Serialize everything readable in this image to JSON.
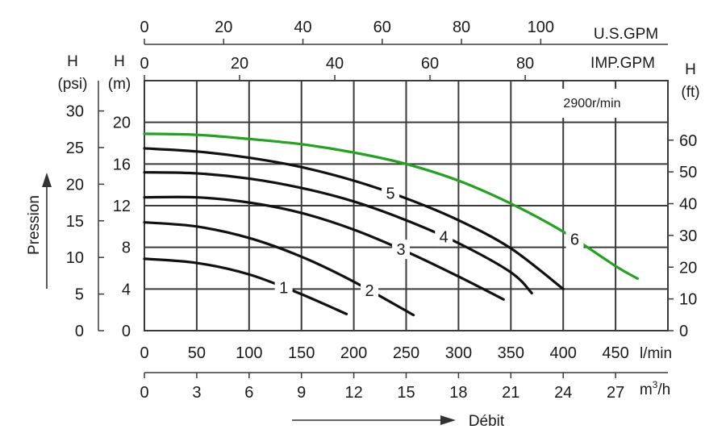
{
  "chart_data": {
    "type": "line",
    "speed_label": "2900r/min",
    "axes": {
      "x_lmin": {
        "unit": "l/min",
        "min": 0,
        "max": 500,
        "ticks": [
          0,
          50,
          100,
          150,
          200,
          250,
          300,
          350,
          400,
          450
        ]
      },
      "x_m3h": {
        "unit_base": "m",
        "unit_sup": "3",
        "unit_tail": "/h",
        "ticks": [
          0,
          3,
          6,
          9,
          12,
          15,
          18,
          21,
          24,
          27
        ]
      },
      "x_usgpm": {
        "unit": "U.S.GPM",
        "ticks": [
          0,
          20,
          40,
          60,
          80,
          100
        ]
      },
      "x_impgpm": {
        "unit": "IMP.GPM",
        "ticks": [
          0,
          20,
          40,
          60,
          80
        ]
      },
      "y_m": {
        "title_top": "H",
        "title_bottom": "(m)",
        "min": 0,
        "max": 24,
        "ticks": [
          0,
          4,
          8,
          12,
          16,
          20
        ]
      },
      "y_psi": {
        "title_top": "H",
        "title_bottom": "(psi)",
        "ticks": [
          0,
          5,
          10,
          15,
          20,
          25,
          30
        ]
      },
      "y_ft": {
        "title_top": "H",
        "title_bottom": "(ft)",
        "ticks": [
          0,
          10,
          20,
          30,
          40,
          50,
          60
        ]
      }
    },
    "ylabel": "Pression",
    "xlabel": "Débit",
    "grid": true,
    "series": [
      {
        "name": "1",
        "color": "#111111",
        "label_at": 133,
        "points": [
          [
            0,
            6.9
          ],
          [
            50,
            6.5
          ],
          [
            100,
            5.4
          ],
          [
            150,
            3.5
          ],
          [
            193,
            1.6
          ]
        ]
      },
      {
        "name": "2",
        "color": "#111111",
        "label_at": 215,
        "points": [
          [
            0,
            10.4
          ],
          [
            50,
            10.0
          ],
          [
            100,
            8.9
          ],
          [
            150,
            7.1
          ],
          [
            200,
            4.7
          ],
          [
            257,
            1.5
          ]
        ]
      },
      {
        "name": "3",
        "color": "#111111",
        "label_at": 245,
        "points": [
          [
            0,
            12.8
          ],
          [
            50,
            12.8
          ],
          [
            100,
            12.3
          ],
          [
            150,
            11.3
          ],
          [
            200,
            9.7
          ],
          [
            250,
            7.6
          ],
          [
            300,
            5.2
          ],
          [
            343,
            3.0
          ]
        ]
      },
      {
        "name": "4",
        "color": "#111111",
        "label_at": 286,
        "points": [
          [
            0,
            15.2
          ],
          [
            50,
            15.1
          ],
          [
            100,
            14.6
          ],
          [
            150,
            13.7
          ],
          [
            200,
            12.4
          ],
          [
            250,
            10.6
          ],
          [
            300,
            8.4
          ],
          [
            350,
            5.6
          ],
          [
            370,
            3.6
          ]
        ]
      },
      {
        "name": "5",
        "color": "#111111",
        "label_at": 235,
        "points": [
          [
            0,
            17.5
          ],
          [
            50,
            17.2
          ],
          [
            100,
            16.6
          ],
          [
            150,
            15.7
          ],
          [
            200,
            14.4
          ],
          [
            250,
            12.7
          ],
          [
            300,
            10.6
          ],
          [
            350,
            7.9
          ],
          [
            400,
            4.0
          ]
        ]
      },
      {
        "name": "6",
        "color": "#22a31f",
        "label_at": 411,
        "points": [
          [
            0,
            18.9
          ],
          [
            50,
            18.8
          ],
          [
            100,
            18.4
          ],
          [
            150,
            17.9
          ],
          [
            200,
            17.1
          ],
          [
            250,
            16.0
          ],
          [
            300,
            14.4
          ],
          [
            350,
            12.2
          ],
          [
            400,
            9.5
          ],
          [
            450,
            6.2
          ],
          [
            471,
            5.0
          ]
        ]
      }
    ]
  }
}
